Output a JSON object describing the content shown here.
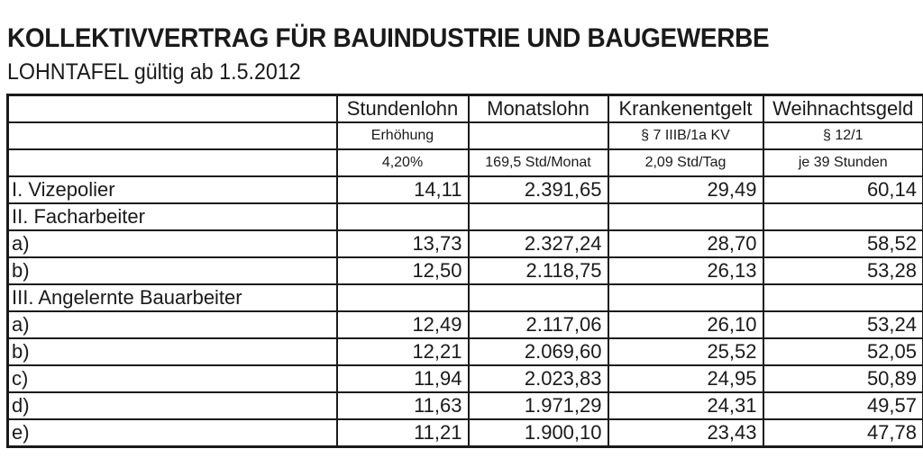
{
  "title": "KOLLEKTIVVERTRAG FÜR BAUINDUSTRIE UND BAUGEWERBE",
  "subtitle": "LOHNTAFEL gültig ab 1.5.2012",
  "table": {
    "headers": [
      "",
      "Stundenlohn",
      "Monatslohn",
      "Krankenentgelt",
      "Weihnachtsgeld"
    ],
    "subheader1": [
      "",
      "Erhöhung",
      "",
      "§ 7 IIIB/1a KV",
      "§ 12/1"
    ],
    "subheader2": [
      "",
      "4,20%",
      "169,5 Std/Monat",
      "2,09 Std/Tag",
      "je 39 Stunden"
    ],
    "rows": [
      [
        "I. Vizepolier",
        "14,11",
        "2.391,65",
        "29,49",
        "60,14"
      ],
      [
        "II. Facharbeiter",
        "",
        "",
        "",
        ""
      ],
      [
        "a)",
        "13,73",
        "2.327,24",
        "28,70",
        "58,52"
      ],
      [
        "b)",
        "12,50",
        "2.118,75",
        "26,13",
        "53,28"
      ],
      [
        "III. Angelernte Bauarbeiter",
        "",
        "",
        "",
        ""
      ],
      [
        "a)",
        "12,49",
        "2.117,06",
        "26,10",
        "53,24"
      ],
      [
        "b)",
        "12,21",
        "2.069,60",
        "25,52",
        "52,05"
      ],
      [
        "c)",
        "11,94",
        "2.023,83",
        "24,95",
        "50,89"
      ],
      [
        "d)",
        "11,63",
        "1.971,29",
        "24,31",
        "49,57"
      ],
      [
        "e)",
        "11,21",
        "1.900,10",
        "23,43",
        "47,78"
      ]
    ]
  }
}
